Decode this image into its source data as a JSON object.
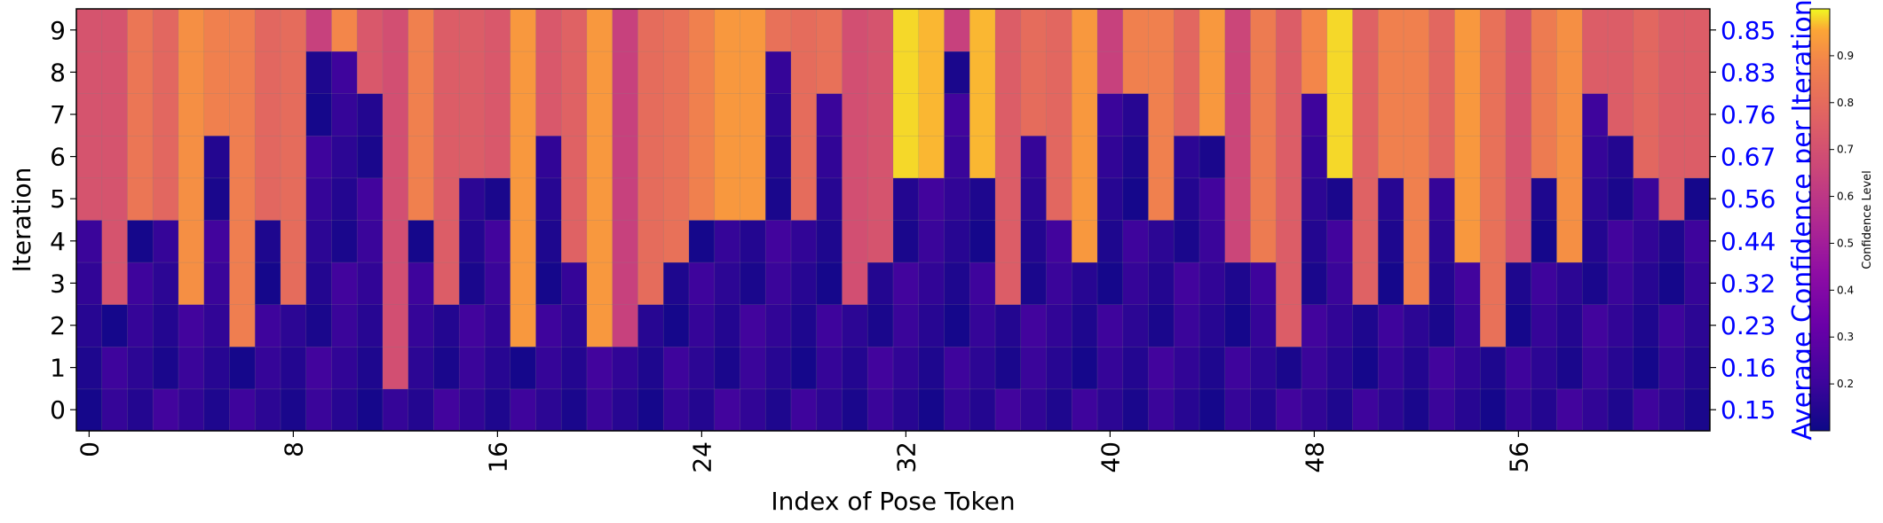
{
  "chart_data": {
    "type": "heatmap",
    "xlabel": "Index of Pose Token",
    "ylabel": "Iteration",
    "y2label": "Average Confidence per Iteration",
    "colorbar_label": "Confidence Level",
    "x_tick_labels": [
      "0",
      "8",
      "16",
      "24",
      "32",
      "40",
      "48",
      "56"
    ],
    "y_tick_labels": [
      "0",
      "1",
      "2",
      "3",
      "4",
      "5",
      "6",
      "7",
      "8",
      "9"
    ],
    "avg_confidence_labels": [
      "0.15",
      "0.16",
      "0.23",
      "0.32",
      "0.44",
      "0.56",
      "0.67",
      "0.76",
      "0.83",
      "0.85"
    ],
    "colorbar_tick_labels": [
      "0.2",
      "0.3",
      "0.4",
      "0.5",
      "0.6",
      "0.7",
      "0.8",
      "0.9"
    ],
    "colorbar_range": [
      0.1,
      1.0
    ],
    "colormap": "plasma",
    "right_axis_color": "#0000ff",
    "n_tokens": 64,
    "n_iterations": 10,
    "finalize_iteration": [
      5,
      3,
      5,
      5,
      3,
      7,
      2,
      5,
      3,
      9,
      9,
      8,
      1,
      5,
      3,
      6,
      6,
      2,
      7,
      4,
      2,
      2,
      3,
      4,
      5,
      5,
      5,
      9,
      5,
      8,
      3,
      4,
      6,
      6,
      9,
      6,
      3,
      7,
      5,
      4,
      8,
      8,
      5,
      7,
      7,
      4,
      4,
      2,
      8,
      6,
      3,
      6,
      3,
      6,
      4,
      2,
      4,
      6,
      4,
      8,
      7,
      6,
      5,
      6
    ],
    "token_colormap_values": [
      0.68,
      0.68,
      0.82,
      0.76,
      0.9,
      0.86,
      0.85,
      0.76,
      0.78,
      0.6,
      0.88,
      0.7,
      0.66,
      0.86,
      0.72,
      0.72,
      0.7,
      0.92,
      0.7,
      0.74,
      0.92,
      0.6,
      0.78,
      0.8,
      0.86,
      0.92,
      0.92,
      0.8,
      0.78,
      0.8,
      0.66,
      0.68,
      0.98,
      0.96,
      0.6,
      0.96,
      0.72,
      0.78,
      0.76,
      0.92,
      0.6,
      0.86,
      0.86,
      0.76,
      0.92,
      0.62,
      0.84,
      0.72,
      0.88,
      0.98,
      0.74,
      0.86,
      0.86,
      0.76,
      0.92,
      0.8,
      0.68,
      0.84,
      0.9,
      0.72,
      0.72,
      0.76,
      0.72,
      0.72
    ]
  }
}
